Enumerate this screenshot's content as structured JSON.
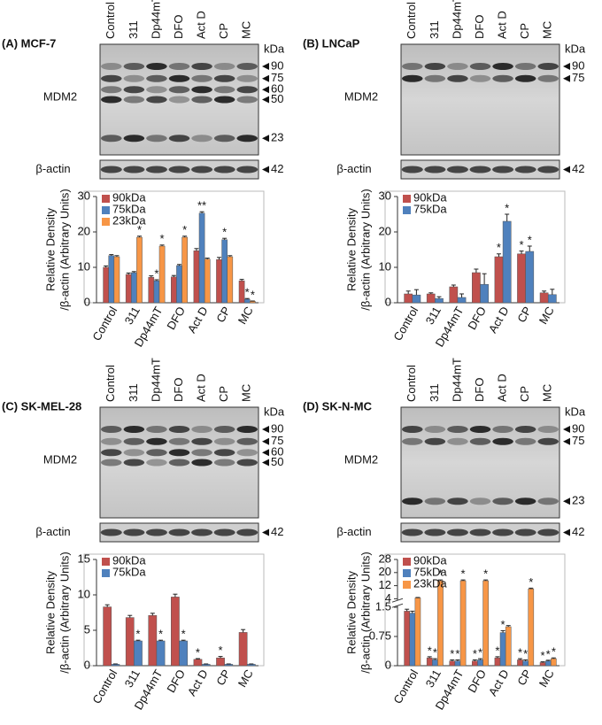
{
  "chart_data": [
    {
      "type": "bar",
      "panel_label": "(A) MCF-7",
      "blot_label": "MDM2",
      "actin_label": "β-actin",
      "kda_unit": "kDa",
      "markers": [
        "90",
        "75",
        "60",
        "50",
        "23"
      ],
      "actin_marker": "42",
      "ylabel": [
        "Relative Density",
        "/β-actin (Arbitrary Units)"
      ],
      "categories": [
        "Control",
        "311",
        "Dp44mT",
        "DFO",
        "Act D",
        "CP",
        "MC"
      ],
      "ylim": [
        0,
        30
      ],
      "yticks": [
        0,
        10,
        20,
        30
      ],
      "series": [
        {
          "name": "90kDa",
          "color": "#c0504d",
          "values": [
            10,
            8,
            7.2,
            7.3,
            14.7,
            12.2,
            6.2
          ],
          "errors": [
            0.4,
            0.4,
            0.4,
            0.4,
            0.6,
            0.6,
            0.4
          ]
        },
        {
          "name": "75kDa",
          "color": "#4f81bd",
          "values": [
            13.3,
            8.5,
            6.2,
            10.5,
            25.3,
            17.8,
            1
          ],
          "errors": [
            0.3,
            0.3,
            0.3,
            0.3,
            0.4,
            0.4,
            0.2
          ],
          "stars": [
            null,
            null,
            "*",
            null,
            "**",
            "*",
            "*"
          ]
        },
        {
          "name": "23kDa",
          "color": "#f79646",
          "values": [
            13,
            18.5,
            16,
            18.5,
            12.3,
            13,
            0.4
          ],
          "errors": [
            0.3,
            0.3,
            0.3,
            0.3,
            0.3,
            0.3,
            0.1
          ],
          "stars": [
            null,
            "*",
            "*",
            "*",
            null,
            null,
            "*"
          ]
        }
      ]
    },
    {
      "type": "bar",
      "panel_label": "(B) LNCaP",
      "blot_label": "MDM2",
      "actin_label": "β-actin",
      "kda_unit": "kDa",
      "markers": [
        "90",
        "75"
      ],
      "actin_marker": "42",
      "ylabel": [
        "Relative Density",
        "/β-actin (Arbitrary Units)"
      ],
      "categories": [
        "Control",
        "311",
        "Dp44mT",
        "DFO",
        "Act D",
        "CP",
        "MC"
      ],
      "ylim": [
        0,
        30
      ],
      "yticks": [
        0,
        10,
        20,
        30
      ],
      "series": [
        {
          "name": "90kDa",
          "color": "#c0504d",
          "values": [
            2.5,
            2.5,
            4.5,
            8.5,
            13,
            13.8,
            2.8
          ],
          "errors": [
            0.8,
            0.3,
            0.5,
            1,
            0.8,
            0.8,
            0.5
          ],
          "stars": [
            null,
            null,
            null,
            null,
            "*",
            "*",
            null
          ]
        },
        {
          "name": "75kDa",
          "color": "#4f81bd",
          "values": [
            2.2,
            1.2,
            1.5,
            5.2,
            23,
            14.5,
            2.3
          ],
          "errors": [
            1.5,
            0.5,
            1,
            3,
            2,
            1.5,
            1.5
          ],
          "stars": [
            null,
            null,
            null,
            null,
            "*",
            "*",
            null
          ]
        }
      ]
    },
    {
      "type": "bar",
      "panel_label": "(C) SK-MEL-28",
      "blot_label": "MDM2",
      "actin_label": "β-actin",
      "kda_unit": "kDa",
      "markers": [
        "90",
        "75",
        "60",
        "50"
      ],
      "actin_marker": "42",
      "ylabel": [
        "Relative Density",
        "/β-actin (Arbitrary Units)"
      ],
      "categories": [
        "Control",
        "311",
        "Dp44mT",
        "DFO",
        "Act D",
        "CP",
        "MC"
      ],
      "ylim": [
        0,
        15
      ],
      "yticks": [
        0,
        5,
        10,
        15
      ],
      "series": [
        {
          "name": "90kDa",
          "color": "#c0504d",
          "values": [
            8.3,
            6.8,
            7.1,
            9.7,
            0.9,
            1.1,
            4.7
          ],
          "errors": [
            0.3,
            0.3,
            0.3,
            0.4,
            0.1,
            0.2,
            0.4
          ],
          "stars": [
            null,
            null,
            null,
            null,
            "*",
            "*",
            null
          ]
        },
        {
          "name": "75kDa",
          "color": "#4f81bd",
          "values": [
            0.2,
            3.5,
            3.5,
            3.5,
            0.2,
            0.2,
            0.2
          ],
          "errors": [
            0.05,
            0.1,
            0.1,
            0.1,
            0.05,
            0.05,
            0.05
          ],
          "stars": [
            null,
            "*",
            "*",
            "*",
            null,
            null,
            null
          ]
        }
      ]
    },
    {
      "type": "bar",
      "panel_label": "(D) SK-N-MC",
      "blot_label": "MDM2",
      "actin_label": "β-actin",
      "kda_unit": "kDa",
      "markers": [
        "90",
        "75",
        "23"
      ],
      "actin_marker": "42",
      "ylabel": [
        "Relative Density",
        "/β-actin (Arbitrary Units)"
      ],
      "categories": [
        "Control",
        "311",
        "Dp44mT",
        "DFO",
        "Act D",
        "CP",
        "MC"
      ],
      "ylim": [
        0,
        28
      ],
      "ybreak": [
        1.5,
        4
      ],
      "yticks": [
        0,
        0.75,
        1.5,
        4,
        12,
        20,
        28
      ],
      "series": [
        {
          "name": "90kDa",
          "color": "#c0504d",
          "values": [
            1.4,
            0.2,
            0.12,
            0.12,
            0.2,
            0.15,
            0.08
          ],
          "errors": [
            0.05,
            0.03,
            0.03,
            0.03,
            0.03,
            0.03,
            0.02
          ],
          "stars": [
            null,
            "*",
            "*",
            "*",
            "*",
            "*",
            "*"
          ]
        },
        {
          "name": "75kDa",
          "color": "#4f81bd",
          "values": [
            1.35,
            0.15,
            0.12,
            0.15,
            0.85,
            0.12,
            0.12
          ],
          "errors": [
            0.05,
            0.03,
            0.03,
            0.03,
            0.05,
            0.03,
            0.02
          ],
          "stars": [
            null,
            "*",
            "*",
            "*",
            "*",
            "*",
            "*"
          ]
        },
        {
          "name": "23kDa",
          "color": "#f79646",
          "values": [
            4.5,
            15,
            15,
            15,
            1,
            10,
            0.18
          ],
          "errors": [
            0.3,
            0.5,
            0.5,
            0.5,
            0.03,
            0.5,
            0.02
          ],
          "stars": [
            null,
            "*",
            "*",
            "*",
            null,
            "*",
            "*"
          ]
        }
      ]
    }
  ]
}
